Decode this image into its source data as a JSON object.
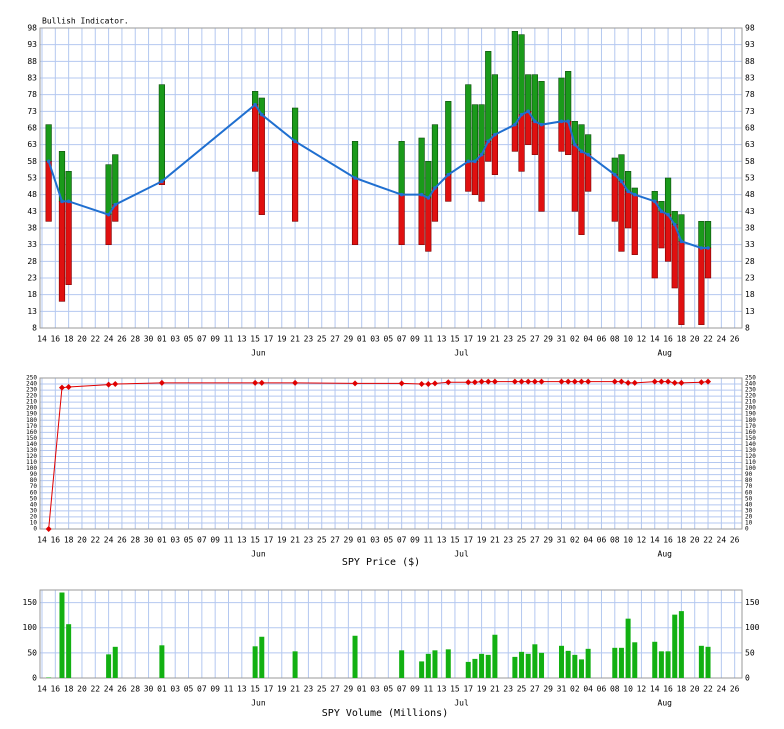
{
  "chart_data": [
    {
      "type": "range",
      "title": "Bullish Indicator.",
      "x": [
        1,
        3,
        4,
        10,
        11,
        18,
        32,
        33,
        38,
        47,
        54,
        57,
        58,
        59,
        61,
        64,
        65,
        66,
        67,
        68,
        71,
        72,
        73,
        74,
        75,
        78,
        79,
        80,
        81,
        82,
        86,
        87,
        88,
        89,
        92,
        93,
        94,
        95,
        96,
        99,
        100
      ],
      "values": [
        58,
        46,
        46,
        42,
        45,
        52,
        75,
        72,
        64,
        53,
        48,
        48,
        47,
        50,
        54,
        58,
        58,
        60,
        64,
        66,
        69,
        72,
        73,
        70,
        69,
        70,
        70,
        63,
        61,
        60,
        54,
        52,
        49,
        48,
        46,
        43,
        42,
        39,
        34,
        32,
        32
      ],
      "high": [
        69,
        61,
        55,
        57,
        60,
        81,
        79,
        77,
        74,
        64,
        64,
        65,
        58,
        69,
        76,
        81,
        75,
        75,
        91,
        84,
        97,
        96,
        84,
        84,
        82,
        83,
        85,
        70,
        69,
        66,
        59,
        60,
        55,
        50,
        49,
        46,
        53,
        43,
        42,
        40,
        40
      ],
      "low": [
        40,
        16,
        21,
        33,
        40,
        51,
        55,
        42,
        40,
        33,
        33,
        33,
        31,
        40,
        46,
        49,
        48,
        46,
        58,
        54,
        61,
        55,
        63,
        60,
        43,
        61,
        60,
        43,
        36,
        49,
        40,
        31,
        38,
        30,
        23,
        32,
        28,
        20,
        9,
        9,
        23
      ],
      "up_color": "#1a9a1a",
      "down_color": "#e01010",
      "line_color": "#1f6fd0",
      "ylim": [
        8,
        98
      ],
      "yticks": [
        8,
        13,
        18,
        23,
        28,
        33,
        38,
        43,
        48,
        53,
        58,
        63,
        68,
        73,
        78,
        83,
        88,
        93,
        98
      ],
      "xlim": [
        -0.3,
        105.1
      ],
      "xticks": [
        {
          "value": 0,
          "label": "14"
        },
        {
          "value": 2,
          "label": "16"
        },
        {
          "value": 4,
          "label": "18"
        },
        {
          "value": 6,
          "label": "20"
        },
        {
          "value": 8,
          "label": "22"
        },
        {
          "value": 10,
          "label": "24"
        },
        {
          "value": 12,
          "label": "26"
        },
        {
          "value": 14,
          "label": "28"
        },
        {
          "value": 16,
          "label": "30"
        },
        {
          "value": 18,
          "label": "01"
        },
        {
          "value": 20,
          "label": "03"
        },
        {
          "value": 22,
          "label": "05"
        },
        {
          "value": 24,
          "label": "07"
        },
        {
          "value": 26,
          "label": "09"
        },
        {
          "value": 28,
          "label": "11"
        },
        {
          "value": 30,
          "label": "13"
        },
        {
          "value": 32,
          "label": "15"
        },
        {
          "value": 34,
          "label": "17"
        },
        {
          "value": 36,
          "label": "19"
        },
        {
          "value": 38,
          "label": "21"
        },
        {
          "value": 40,
          "label": "23"
        },
        {
          "value": 42,
          "label": "25"
        },
        {
          "value": 44,
          "label": "27"
        },
        {
          "value": 46,
          "label": "29"
        },
        {
          "value": 48,
          "label": "01"
        },
        {
          "value": 50,
          "label": "03"
        },
        {
          "value": 52,
          "label": "05"
        },
        {
          "value": 54,
          "label": "07"
        },
        {
          "value": 56,
          "label": "09"
        },
        {
          "value": 58,
          "label": "11"
        },
        {
          "value": 60,
          "label": "13"
        },
        {
          "value": 62,
          "label": "15"
        },
        {
          "value": 64,
          "label": "17"
        },
        {
          "value": 66,
          "label": "19"
        },
        {
          "value": 68,
          "label": "21"
        },
        {
          "value": 70,
          "label": "23"
        },
        {
          "value": 72,
          "label": "25"
        },
        {
          "value": 74,
          "label": "27"
        },
        {
          "value": 76,
          "label": "29"
        },
        {
          "value": 78,
          "label": "31"
        },
        {
          "value": 80,
          "label": "02"
        },
        {
          "value": 82,
          "label": "04"
        },
        {
          "value": 84,
          "label": "06"
        },
        {
          "value": 86,
          "label": "08"
        },
        {
          "value": 88,
          "label": "10"
        },
        {
          "value": 90,
          "label": "12"
        },
        {
          "value": 92,
          "label": "14"
        },
        {
          "value": 94,
          "label": "16"
        },
        {
          "value": 96,
          "label": "18"
        },
        {
          "value": 98,
          "label": "20"
        },
        {
          "value": 100,
          "label": "22"
        },
        {
          "value": 102,
          "label": "24"
        },
        {
          "value": 104,
          "label": "26"
        }
      ],
      "months": [
        {
          "value": 32.5,
          "label": "Jun"
        },
        {
          "value": 63,
          "label": "Jul"
        },
        {
          "value": 93.5,
          "label": "Aug"
        }
      ],
      "grid": true
    },
    {
      "type": "line",
      "title": "SPY Price ($)",
      "x": [
        1,
        3,
        4,
        10,
        11,
        18,
        32,
        33,
        38,
        47,
        54,
        57,
        58,
        59,
        61,
        64,
        65,
        66,
        67,
        68,
        71,
        72,
        73,
        74,
        75,
        78,
        79,
        80,
        81,
        82,
        86,
        87,
        88,
        89,
        92,
        93,
        94,
        95,
        96,
        99,
        100
      ],
      "values": [
        0,
        234,
        235,
        239,
        240,
        242,
        242,
        242,
        242,
        241,
        241,
        240,
        240,
        241,
        243,
        243,
        243,
        244,
        244,
        244,
        244,
        244,
        244,
        244,
        244,
        244,
        244,
        244,
        244,
        244,
        244,
        244,
        242,
        242,
        244,
        244,
        244,
        242,
        242,
        243,
        244
      ],
      "color": "#e00000",
      "ylim": [
        0,
        250
      ],
      "yticks": [
        0,
        10,
        20,
        30,
        40,
        50,
        60,
        70,
        80,
        90,
        100,
        110,
        120,
        130,
        140,
        150,
        160,
        170,
        180,
        190,
        200,
        210,
        220,
        230,
        240,
        250
      ],
      "xlim": [
        -0.3,
        105.1
      ],
      "xticks": [
        {
          "value": 0,
          "label": "14"
        },
        {
          "value": 2,
          "label": "16"
        },
        {
          "value": 4,
          "label": "18"
        },
        {
          "value": 6,
          "label": "20"
        },
        {
          "value": 8,
          "label": "22"
        },
        {
          "value": 10,
          "label": "24"
        },
        {
          "value": 12,
          "label": "26"
        },
        {
          "value": 14,
          "label": "28"
        },
        {
          "value": 16,
          "label": "30"
        },
        {
          "value": 18,
          "label": "01"
        },
        {
          "value": 20,
          "label": "03"
        },
        {
          "value": 22,
          "label": "05"
        },
        {
          "value": 24,
          "label": "07"
        },
        {
          "value": 26,
          "label": "09"
        },
        {
          "value": 28,
          "label": "11"
        },
        {
          "value": 30,
          "label": "13"
        },
        {
          "value": 32,
          "label": "15"
        },
        {
          "value": 34,
          "label": "17"
        },
        {
          "value": 36,
          "label": "19"
        },
        {
          "value": 38,
          "label": "21"
        },
        {
          "value": 40,
          "label": "23"
        },
        {
          "value": 42,
          "label": "25"
        },
        {
          "value": 44,
          "label": "27"
        },
        {
          "value": 46,
          "label": "29"
        },
        {
          "value": 48,
          "label": "01"
        },
        {
          "value": 50,
          "label": "03"
        },
        {
          "value": 52,
          "label": "05"
        },
        {
          "value": 54,
          "label": "07"
        },
        {
          "value": 56,
          "label": "09"
        },
        {
          "value": 58,
          "label": "11"
        },
        {
          "value": 60,
          "label": "13"
        },
        {
          "value": 62,
          "label": "15"
        },
        {
          "value": 64,
          "label": "17"
        },
        {
          "value": 66,
          "label": "19"
        },
        {
          "value": 68,
          "label": "21"
        },
        {
          "value": 70,
          "label": "23"
        },
        {
          "value": 72,
          "label": "25"
        },
        {
          "value": 74,
          "label": "27"
        },
        {
          "value": 76,
          "label": "29"
        },
        {
          "value": 78,
          "label": "31"
        },
        {
          "value": 80,
          "label": "02"
        },
        {
          "value": 82,
          "label": "04"
        },
        {
          "value": 84,
          "label": "06"
        },
        {
          "value": 86,
          "label": "08"
        },
        {
          "value": 88,
          "label": "10"
        },
        {
          "value": 90,
          "label": "12"
        },
        {
          "value": 92,
          "label": "14"
        },
        {
          "value": 94,
          "label": "16"
        },
        {
          "value": 96,
          "label": "18"
        },
        {
          "value": 98,
          "label": "20"
        },
        {
          "value": 100,
          "label": "22"
        },
        {
          "value": 102,
          "label": "24"
        },
        {
          "value": 104,
          "label": "26"
        }
      ],
      "months": [
        {
          "value": 32.5,
          "label": "Jun"
        },
        {
          "value": 63,
          "label": "Jul"
        },
        {
          "value": 93.5,
          "label": "Aug"
        }
      ],
      "grid": true
    },
    {
      "type": "bar",
      "title": "SPY Volume (Millions)",
      "x": [
        1,
        3,
        4,
        10,
        11,
        18,
        32,
        33,
        38,
        47,
        54,
        57,
        58,
        59,
        61,
        64,
        65,
        66,
        67,
        68,
        71,
        72,
        73,
        74,
        75,
        78,
        79,
        80,
        81,
        82,
        86,
        87,
        88,
        89,
        92,
        93,
        94,
        95,
        96,
        99,
        100
      ],
      "values": [
        1,
        170,
        107,
        47,
        62,
        65,
        63,
        82,
        53,
        84,
        55,
        33,
        48,
        55,
        57,
        32,
        38,
        48,
        46,
        86,
        42,
        52,
        48,
        67,
        50,
        64,
        54,
        46,
        37,
        58,
        60,
        60,
        118,
        71,
        72,
        53,
        53,
        126,
        133,
        64,
        62
      ],
      "color": "#12b012",
      "ylim": [
        0,
        175
      ],
      "yticks": [
        0,
        50,
        100,
        150
      ],
      "xlim": [
        -0.3,
        105.1
      ],
      "xticks": [
        {
          "value": 0,
          "label": "14"
        },
        {
          "value": 2,
          "label": "16"
        },
        {
          "value": 4,
          "label": "18"
        },
        {
          "value": 6,
          "label": "20"
        },
        {
          "value": 8,
          "label": "22"
        },
        {
          "value": 10,
          "label": "24"
        },
        {
          "value": 12,
          "label": "26"
        },
        {
          "value": 14,
          "label": "28"
        },
        {
          "value": 16,
          "label": "30"
        },
        {
          "value": 18,
          "label": "01"
        },
        {
          "value": 20,
          "label": "03"
        },
        {
          "value": 22,
          "label": "05"
        },
        {
          "value": 24,
          "label": "07"
        },
        {
          "value": 26,
          "label": "09"
        },
        {
          "value": 28,
          "label": "11"
        },
        {
          "value": 30,
          "label": "13"
        },
        {
          "value": 32,
          "label": "15"
        },
        {
          "value": 34,
          "label": "17"
        },
        {
          "value": 36,
          "label": "19"
        },
        {
          "value": 38,
          "label": "21"
        },
        {
          "value": 40,
          "label": "23"
        },
        {
          "value": 42,
          "label": "25"
        },
        {
          "value": 44,
          "label": "27"
        },
        {
          "value": 46,
          "label": "29"
        },
        {
          "value": 48,
          "label": "01"
        },
        {
          "value": 50,
          "label": "03"
        },
        {
          "value": 52,
          "label": "05"
        },
        {
          "value": 54,
          "label": "07"
        },
        {
          "value": 56,
          "label": "09"
        },
        {
          "value": 58,
          "label": "11"
        },
        {
          "value": 60,
          "label": "13"
        },
        {
          "value": 62,
          "label": "15"
        },
        {
          "value": 64,
          "label": "17"
        },
        {
          "value": 66,
          "label": "19"
        },
        {
          "value": 68,
          "label": "21"
        },
        {
          "value": 70,
          "label": "23"
        },
        {
          "value": 72,
          "label": "25"
        },
        {
          "value": 74,
          "label": "27"
        },
        {
          "value": 76,
          "label": "29"
        },
        {
          "value": 78,
          "label": "31"
        },
        {
          "value": 80,
          "label": "02"
        },
        {
          "value": 82,
          "label": "04"
        },
        {
          "value": 84,
          "label": "06"
        },
        {
          "value": 86,
          "label": "08"
        },
        {
          "value": 88,
          "label": "10"
        },
        {
          "value": 90,
          "label": "12"
        },
        {
          "value": 92,
          "label": "14"
        },
        {
          "value": 94,
          "label": "16"
        },
        {
          "value": 96,
          "label": "18"
        },
        {
          "value": 98,
          "label": "20"
        },
        {
          "value": 100,
          "label": "22"
        },
        {
          "value": 102,
          "label": "24"
        },
        {
          "value": 104,
          "label": "26"
        }
      ],
      "months": [
        {
          "value": 32.5,
          "label": "Jun"
        },
        {
          "value": 63,
          "label": "Jul"
        },
        {
          "value": 93.5,
          "label": "Aug"
        }
      ],
      "grid": true
    }
  ]
}
